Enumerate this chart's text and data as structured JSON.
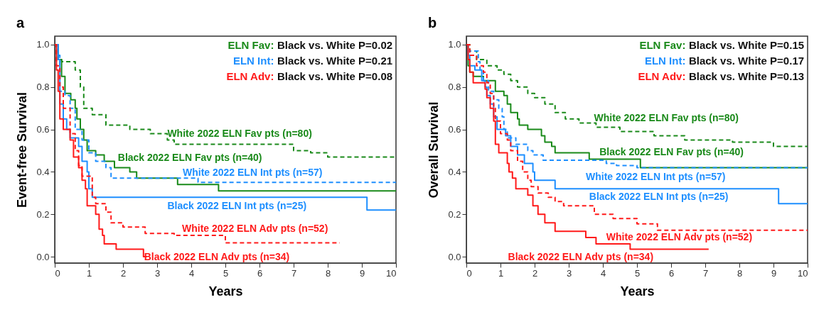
{
  "chart_data": [
    {
      "type": "step",
      "title": "a",
      "xlabel": "Years",
      "ylabel": "Event-free Survival",
      "xlim": [
        0,
        10
      ],
      "xticks": [
        0,
        1,
        2,
        3,
        4,
        5,
        6,
        7,
        8,
        9,
        10
      ],
      "ylim": [
        -0.03,
        1.04
      ],
      "yticks": [
        {
          "value": 0,
          "label": "0.0"
        },
        {
          "value": 0.2,
          "label": "0.2"
        },
        {
          "value": 0.4,
          "label": "0.4"
        },
        {
          "value": 0.6,
          "label": "0.6"
        },
        {
          "value": 0.8,
          "label": "0.8"
        },
        {
          "value": 1,
          "label": "1.0"
        }
      ],
      "grid": false,
      "legend": false,
      "marker": "none",
      "annotations": [
        "ELN Fav: Black vs. White P=0.02",
        "ELN Int: Black vs. White P=0.21",
        "ELN Adv: Black vs. White P=0.08"
      ],
      "series": [
        {
          "name": "White 2022 ELN Fav pts (n=80)",
          "color": "#1a8a1a",
          "line_style": "dashed",
          "x": [
            0,
            0.1,
            0.2,
            0.6,
            0.75,
            0.85,
            1.1,
            1.5,
            2.2,
            2.8,
            3.3,
            3.5,
            7.0,
            7.5,
            8.0,
            10
          ],
          "values": [
            1,
            0.93,
            0.92,
            0.88,
            0.8,
            0.7,
            0.67,
            0.62,
            0.6,
            0.58,
            0.55,
            0.53,
            0.5,
            0.49,
            0.47,
            0.47
          ]
        },
        {
          "name": "Black 2022 ELN Fav pts (n=40)",
          "color": "#1a8a1a",
          "line_style": "solid",
          "x": [
            0,
            0.1,
            0.2,
            0.3,
            0.47,
            0.6,
            0.65,
            0.75,
            0.85,
            0.95,
            1.2,
            1.45,
            1.75,
            2.2,
            2.4,
            3.6,
            4.8,
            10
          ],
          "values": [
            1,
            0.93,
            0.85,
            0.77,
            0.74,
            0.7,
            0.65,
            0.6,
            0.55,
            0.5,
            0.48,
            0.45,
            0.42,
            0.4,
            0.37,
            0.34,
            0.31,
            0.31
          ]
        },
        {
          "name": "White 2022 ELN Int pts (n=57)",
          "color": "#1e8fff",
          "line_style": "dashed",
          "x": [
            0,
            0.1,
            0.15,
            0.3,
            0.45,
            0.6,
            0.8,
            1.0,
            1.2,
            1.5,
            1.65,
            4.2,
            10
          ],
          "values": [
            1,
            0.95,
            0.78,
            0.76,
            0.7,
            0.6,
            0.55,
            0.49,
            0.45,
            0.42,
            0.37,
            0.35,
            0.35
          ]
        },
        {
          "name": "Black 2022 ELN Int pts (n=25)",
          "color": "#1e8fff",
          "line_style": "solid",
          "x": [
            0,
            0.1,
            0.15,
            0.25,
            0.35,
            0.45,
            0.7,
            0.8,
            0.95,
            1.0,
            1.1,
            9.15,
            10
          ],
          "values": [
            1,
            0.93,
            0.72,
            0.65,
            0.6,
            0.56,
            0.52,
            0.45,
            0.4,
            0.32,
            0.28,
            0.22,
            0.22
          ]
        },
        {
          "name": "White 2022 ELN Adv pts (n=52)",
          "color": "#ff1a1a",
          "line_style": "dashed",
          "x": [
            0,
            0.05,
            0.15,
            0.25,
            0.45,
            0.6,
            0.7,
            0.8,
            1.1,
            1.2,
            1.5,
            1.65,
            2.0,
            2.65,
            3.5,
            5.0,
            8.35
          ],
          "values": [
            1,
            0.9,
            0.8,
            0.7,
            0.58,
            0.5,
            0.43,
            0.38,
            0.28,
            0.25,
            0.21,
            0.16,
            0.14,
            0.11,
            0.1,
            0.065,
            0.065
          ]
        },
        {
          "name": "Black 2022 ELN Adv pts (n=34)",
          "color": "#ff1a1a",
          "line_style": "solid",
          "x": [
            0,
            0.05,
            0.1,
            0.15,
            0.25,
            0.45,
            0.55,
            0.7,
            0.8,
            0.9,
            0.95,
            1.2,
            1.3,
            1.4,
            1.45,
            1.8,
            2.6,
            2.7
          ],
          "values": [
            1,
            0.88,
            0.78,
            0.65,
            0.6,
            0.55,
            0.47,
            0.42,
            0.36,
            0.32,
            0.24,
            0.2,
            0.13,
            0.1,
            0.06,
            0.035,
            0,
            0
          ]
        }
      ]
    },
    {
      "type": "step",
      "title": "b",
      "xlabel": "Years",
      "ylabel": "Overall Survival",
      "xlim": [
        0,
        10
      ],
      "xticks": [
        0,
        1,
        2,
        3,
        4,
        5,
        6,
        7,
        8,
        9,
        10
      ],
      "ylim": [
        -0.03,
        1.04
      ],
      "yticks": [
        {
          "value": 0,
          "label": "0.0"
        },
        {
          "value": 0.2,
          "label": "0.2"
        },
        {
          "value": 0.4,
          "label": "0.4"
        },
        {
          "value": 0.6,
          "label": "0.6"
        },
        {
          "value": 0.8,
          "label": "0.8"
        },
        {
          "value": 1,
          "label": "1.0"
        }
      ],
      "grid": false,
      "legend": false,
      "marker": "none",
      "annotations": [
        "ELN Fav: Black vs. White P=0.15",
        "ELN Int: Black vs. White P=0.17",
        "ELN Adv: Black vs. White P=0.13"
      ],
      "series": [
        {
          "name": "White 2022 ELN Fav pts (n=80)",
          "color": "#1a8a1a",
          "line_style": "dashed",
          "x": [
            0,
            0.1,
            0.3,
            0.6,
            0.9,
            1.1,
            1.3,
            1.5,
            1.8,
            2.0,
            2.3,
            2.6,
            2.9,
            3.3,
            3.8,
            4.5,
            5.5,
            6.4,
            7.8,
            9,
            10
          ],
          "values": [
            1,
            0.97,
            0.93,
            0.9,
            0.88,
            0.86,
            0.83,
            0.8,
            0.77,
            0.75,
            0.72,
            0.68,
            0.65,
            0.63,
            0.61,
            0.59,
            0.57,
            0.55,
            0.54,
            0.52,
            0.52
          ]
        },
        {
          "name": "Black 2022 ELN Fav pts (n=40)",
          "color": "#1a8a1a",
          "line_style": "solid",
          "x": [
            0,
            0.05,
            0.1,
            0.2,
            0.5,
            0.85,
            1.1,
            1.2,
            1.3,
            1.5,
            1.55,
            1.8,
            2.2,
            2.3,
            2.5,
            2.6,
            3.6,
            5.1,
            10
          ],
          "values": [
            1,
            0.9,
            0.87,
            0.85,
            0.83,
            0.78,
            0.76,
            0.72,
            0.68,
            0.65,
            0.62,
            0.6,
            0.57,
            0.54,
            0.52,
            0.49,
            0.46,
            0.42,
            0.42
          ]
        },
        {
          "name": "White 2022 ELN Int pts (n=57)",
          "color": "#1e8fff",
          "line_style": "dashed",
          "x": [
            0,
            0.05,
            0.35,
            0.4,
            0.5,
            0.65,
            0.8,
            0.95,
            1.05,
            1.1,
            1.2,
            1.45,
            1.8,
            1.95,
            2.25,
            4.1,
            4.4,
            5.0,
            10
          ],
          "values": [
            1,
            0.97,
            0.92,
            0.88,
            0.83,
            0.78,
            0.74,
            0.7,
            0.66,
            0.6,
            0.56,
            0.53,
            0.5,
            0.48,
            0.455,
            0.44,
            0.43,
            0.42,
            0.42
          ]
        },
        {
          "name": "Black 2022 ELN Int pts (n=25)",
          "color": "#1e8fff",
          "line_style": "solid",
          "x": [
            0,
            0.05,
            0.1,
            0.25,
            0.45,
            0.55,
            0.6,
            0.7,
            0.8,
            0.9,
            1.15,
            1.3,
            1.5,
            1.7,
            1.95,
            2.0,
            2.6,
            9.15,
            10
          ],
          "values": [
            1,
            0.95,
            0.9,
            0.88,
            0.83,
            0.8,
            0.76,
            0.72,
            0.66,
            0.6,
            0.57,
            0.52,
            0.48,
            0.44,
            0.4,
            0.36,
            0.32,
            0.25,
            0.25
          ]
        },
        {
          "name": "White 2022 ELN Adv pts (n=52)",
          "color": "#ff1a1a",
          "line_style": "dashed",
          "x": [
            0,
            0.1,
            0.3,
            0.5,
            0.6,
            0.7,
            0.8,
            0.85,
            1.0,
            1.2,
            1.3,
            1.5,
            1.65,
            1.8,
            1.9,
            2.1,
            2.4,
            2.6,
            2.85,
            3.75,
            4.3,
            5.0,
            5.6,
            10
          ],
          "values": [
            1,
            0.95,
            0.9,
            0.87,
            0.82,
            0.77,
            0.7,
            0.64,
            0.58,
            0.55,
            0.5,
            0.45,
            0.4,
            0.36,
            0.33,
            0.3,
            0.28,
            0.26,
            0.24,
            0.2,
            0.18,
            0.155,
            0.125,
            0.125
          ]
        },
        {
          "name": "Black 2022 ELN Adv pts (n=34)",
          "color": "#ff1a1a",
          "line_style": "solid",
          "x": [
            0,
            0.05,
            0.1,
            0.2,
            0.55,
            0.6,
            0.7,
            0.8,
            0.85,
            0.95,
            1.2,
            1.25,
            1.35,
            1.45,
            1.8,
            1.95,
            2.1,
            2.3,
            2.6,
            3.5,
            3.8,
            4.8,
            7.1
          ],
          "values": [
            1,
            0.93,
            0.87,
            0.82,
            0.79,
            0.75,
            0.7,
            0.64,
            0.53,
            0.49,
            0.44,
            0.4,
            0.37,
            0.32,
            0.29,
            0.24,
            0.2,
            0.16,
            0.12,
            0.09,
            0.06,
            0.035,
            0.035
          ]
        }
      ]
    }
  ]
}
